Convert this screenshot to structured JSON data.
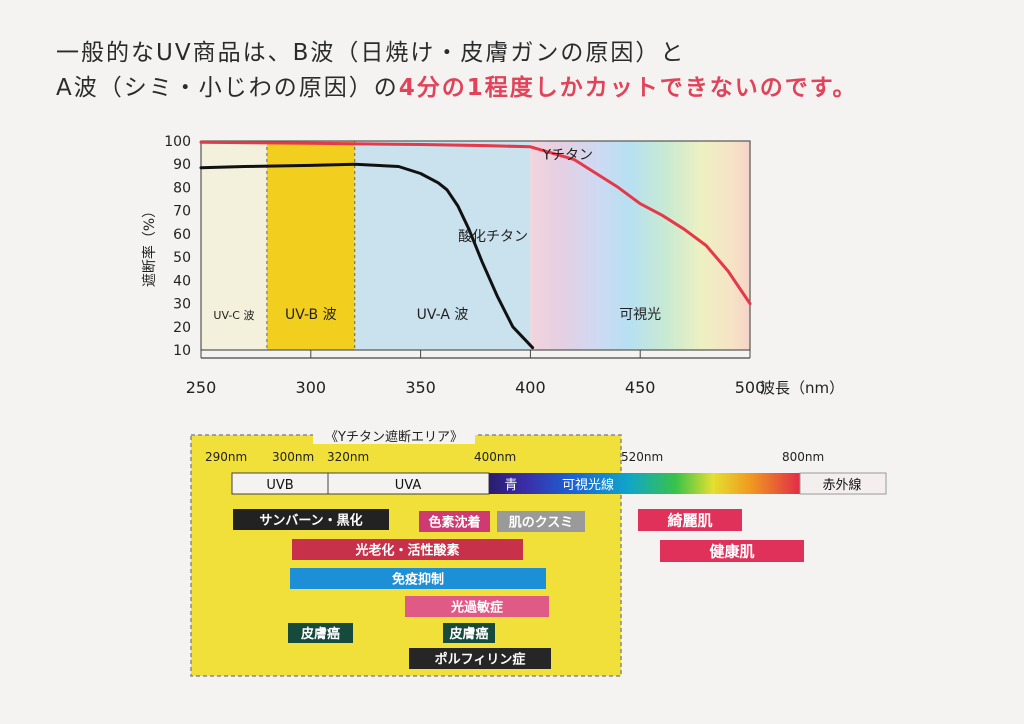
{
  "headline": {
    "line1": "一般的なUV商品は、B波（日焼け・皮膚ガンの原因）と",
    "line2_prefix": "A波（シミ・小じわの原因）の",
    "line2_accent": "4分の1程度しかカットできないのです。",
    "accent_color": "#e0435a"
  },
  "chart_data": [
    {
      "type": "line",
      "xlabel": "波長（nm）",
      "ylabel": "遮断率（%）",
      "xlim": [
        250,
        500
      ],
      "ylim": [
        10,
        100
      ],
      "xticks": [
        250,
        300,
        350,
        400,
        450,
        500
      ],
      "yticks": [
        10,
        20,
        30,
        40,
        50,
        60,
        70,
        80,
        90,
        100
      ],
      "bands": [
        {
          "label": "UV-C 波",
          "x": [
            250,
            280
          ],
          "color": "#f3f1dc"
        },
        {
          "label": "UV-B 波",
          "x": [
            280,
            320
          ],
          "color": "#f2cf1e"
        },
        {
          "label": "UV-A 波",
          "x": [
            320,
            400
          ],
          "color": "#c9e2ee"
        },
        {
          "label": "可視光",
          "x": [
            400,
            500
          ],
          "color": "spectrum"
        }
      ],
      "series": [
        {
          "name": "Yチタン",
          "color": "#e53848",
          "x": [
            250,
            300,
            350,
            380,
            400,
            420,
            440,
            450,
            460,
            470,
            480,
            490,
            500
          ],
          "y": [
            99.5,
            99,
            98.5,
            98,
            97.5,
            92,
            80,
            73,
            68,
            62,
            55,
            44,
            30
          ]
        },
        {
          "name": "酸化チタン",
          "color": "#111111",
          "x": [
            250,
            270,
            300,
            320,
            340,
            350,
            358,
            362,
            367,
            372,
            378,
            385,
            392,
            398,
            401
          ],
          "y": [
            88.5,
            89,
            89.5,
            90,
            89,
            86,
            82,
            79,
            72,
            62,
            48,
            33,
            20,
            14,
            11
          ]
        }
      ]
    },
    {
      "type": "table",
      "title": "《Yチタン遮断エリア》",
      "x_labels": [
        {
          "label": "290nm",
          "x": 290
        },
        {
          "label": "300nm",
          "x": 300
        },
        {
          "label": "320nm",
          "x": 320
        },
        {
          "label": "400nm",
          "x": 400
        },
        {
          "label": "520nm",
          "x": 520
        },
        {
          "label": "800nm",
          "x": 800
        }
      ],
      "scale_segments": [
        {
          "label": "UVB"
        },
        {
          "label": "UVA"
        },
        {
          "label": "青"
        },
        {
          "label": "可視光線"
        },
        {
          "label": "赤外線"
        }
      ],
      "effects": [
        {
          "label": "サンバーン・黒化",
          "color": "#222222",
          "text_color": "#ffffff"
        },
        {
          "label": "色素沈着",
          "color": "#cf3a72",
          "text_color": "#ffffff"
        },
        {
          "label": "肌のクスミ",
          "color": "#9a9a9a",
          "text_color": "#ffffff"
        },
        {
          "label": "光老化・活性酸素",
          "color": "#c8314a",
          "text_color": "#ffffff"
        },
        {
          "label": "免疫抑制",
          "color": "#1d8fd6",
          "text_color": "#ffffff"
        },
        {
          "label": "光過敏症",
          "color": "#e05a86",
          "text_color": "#ffffff"
        },
        {
          "label": "皮膚癌",
          "color": "#164a3c",
          "text_color": "#ffffff"
        },
        {
          "label": "皮膚癌",
          "color": "#164a3c",
          "text_color": "#ffffff"
        },
        {
          "label": "ポルフィリン症",
          "color": "#262626",
          "text_color": "#ffffff"
        },
        {
          "label": "綺麗肌",
          "color": "#e0315a",
          "text_color": "#ffffff"
        },
        {
          "label": "健康肌",
          "color": "#e0315a",
          "text_color": "#ffffff"
        }
      ]
    }
  ]
}
